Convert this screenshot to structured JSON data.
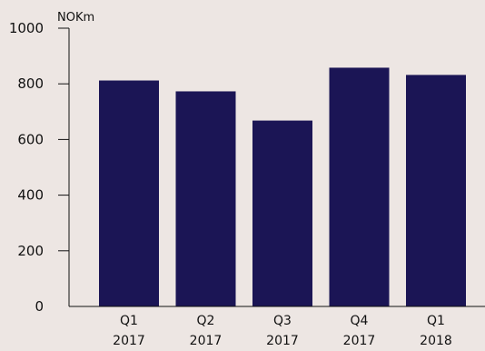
{
  "colors": {
    "background": "#ede6e3",
    "bar": "#1b1555",
    "axis": "#111111"
  },
  "chart_data": {
    "type": "bar",
    "unit_label": "NOKm",
    "categories": [
      [
        "Q1",
        "2017"
      ],
      [
        "Q2",
        "2017"
      ],
      [
        "Q3",
        "2017"
      ],
      [
        "Q4",
        "2017"
      ],
      [
        "Q1",
        "2018"
      ]
    ],
    "values": [
      812,
      773,
      668,
      858,
      832
    ],
    "ylim": [
      0,
      1000
    ],
    "yticks": [
      0,
      200,
      400,
      600,
      800,
      1000
    ],
    "grid": false
  }
}
